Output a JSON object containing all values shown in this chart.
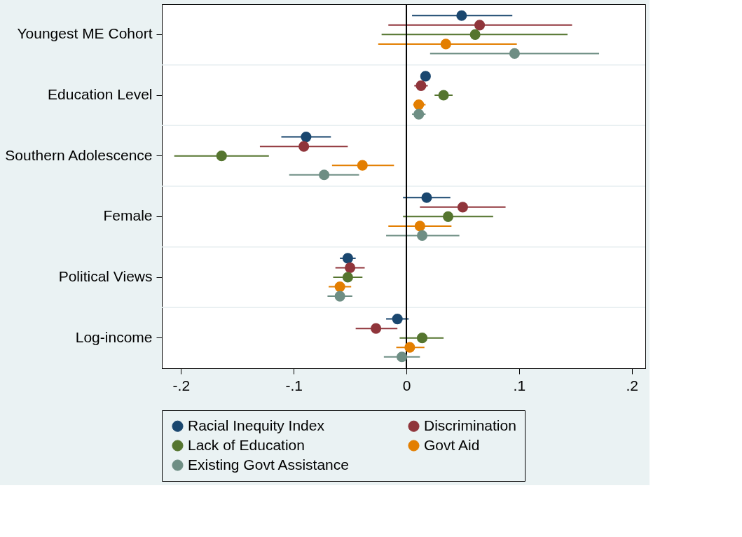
{
  "chart_data": {
    "type": "scatter",
    "orientation": "horizontal",
    "categories": [
      "Youngest ME Cohort",
      "Education Level",
      "Southern Adolescence",
      "Female",
      "Political Views",
      "Log-income"
    ],
    "series": [
      {
        "name": "Racial Inequity Index",
        "color": "#1a476f",
        "values": [
          0.049,
          0.017,
          -0.089,
          0.018,
          -0.052,
          -0.008
        ],
        "errors": [
          [
            0.005,
            0.094
          ],
          [
            0.013,
            0.02
          ],
          [
            -0.111,
            -0.067
          ],
          [
            -0.003,
            0.039
          ],
          [
            -0.059,
            -0.045
          ],
          [
            -0.018,
            0.002
          ]
        ]
      },
      {
        "name": "Discrimination",
        "color": "#90353b",
        "values": [
          0.065,
          0.013,
          -0.091,
          0.05,
          -0.05,
          -0.027
        ],
        "errors": [
          [
            -0.016,
            0.147
          ],
          [
            0.007,
            0.019
          ],
          [
            -0.13,
            -0.052
          ],
          [
            0.012,
            0.088
          ],
          [
            -0.063,
            -0.037
          ],
          [
            -0.045,
            -0.008
          ]
        ]
      },
      {
        "name": "Lack of Education",
        "color": "#55752f",
        "values": [
          0.061,
          0.033,
          -0.164,
          0.037,
          -0.052,
          0.014
        ],
        "errors": [
          [
            -0.022,
            0.143
          ],
          [
            0.025,
            0.041
          ],
          [
            -0.206,
            -0.122
          ],
          [
            -0.003,
            0.077
          ],
          [
            -0.065,
            -0.039
          ],
          [
            -0.006,
            0.033
          ]
        ]
      },
      {
        "name": "Govt Aid",
        "color": "#e37e00",
        "values": [
          0.035,
          0.011,
          -0.039,
          0.012,
          -0.059,
          0.003
        ],
        "errors": [
          [
            -0.025,
            0.098
          ],
          [
            0.006,
            0.017
          ],
          [
            -0.066,
            -0.011
          ],
          [
            -0.016,
            0.04
          ],
          [
            -0.069,
            -0.049
          ],
          [
            -0.009,
            0.016
          ]
        ]
      },
      {
        "name": "Existing Govt Assistance",
        "color": "#6e8e84",
        "values": [
          0.096,
          0.011,
          -0.073,
          0.014,
          -0.059,
          -0.004
        ],
        "errors": [
          [
            0.021,
            0.171
          ],
          [
            0.005,
            0.017
          ],
          [
            -0.104,
            -0.042
          ],
          [
            -0.018,
            0.047
          ],
          [
            -0.07,
            -0.048
          ],
          [
            -0.02,
            0.012
          ]
        ]
      }
    ],
    "xlim": [
      -0.217,
      0.212
    ],
    "xticks": [
      {
        "value": -0.2,
        "label": "-.2"
      },
      {
        "value": -0.1,
        "label": "-.1"
      },
      0,
      {
        "value": 0.1,
        "label": ".1"
      },
      {
        "value": 0.2,
        "label": ".2"
      }
    ],
    "ref_lines": [
      {
        "axis": "x",
        "value": 0
      }
    ],
    "grid": "y",
    "legend": "bottom",
    "marker": "circle"
  }
}
